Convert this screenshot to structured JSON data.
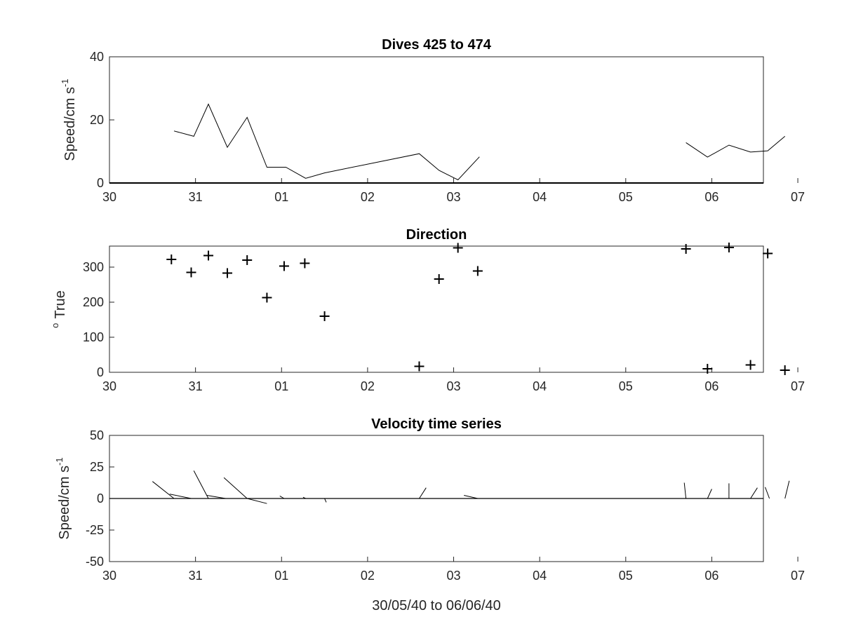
{
  "chart_data": [
    {
      "type": "line",
      "title": "Dives 425 to 474",
      "ylabel_main": "Speed/cm s",
      "ylabel_sup": "-1",
      "xticks": [
        "30",
        "31",
        "01",
        "02",
        "03",
        "04",
        "05",
        "06",
        "07"
      ],
      "yticks": [
        "0",
        "20",
        "40"
      ],
      "xlim_days": [
        0,
        7.6
      ],
      "ylim": [
        0,
        40
      ],
      "series": [
        {
          "x": [
            0.75,
            0.98,
            1.15,
            1.37,
            1.6,
            1.83,
            2.05,
            2.28,
            2.5,
            3.6,
            3.83,
            4.05,
            4.3
          ],
          "y": [
            16.5,
            14.8,
            25.0,
            11.3,
            20.8,
            5.0,
            5.0,
            1.5,
            3.2,
            9.3,
            4.0,
            1.0,
            8.3
          ]
        },
        {
          "x": [
            6.7,
            6.95,
            7.2,
            7.45,
            7.65,
            7.85
          ],
          "y": [
            12.8,
            8.2,
            12.0,
            9.8,
            10.2,
            14.8
          ]
        }
      ]
    },
    {
      "type": "scatter",
      "title": "Direction",
      "ylabel_sup": "o",
      "ylabel_main": "True",
      "xticks": [
        "30",
        "31",
        "01",
        "02",
        "03",
        "04",
        "05",
        "06",
        "07"
      ],
      "yticks": [
        "0",
        "100",
        "200",
        "300"
      ],
      "xlim_days": [
        0,
        7.6
      ],
      "ylim": [
        0,
        360
      ],
      "series": [
        {
          "x": [
            0.72,
            0.95,
            1.15,
            1.37,
            1.6,
            1.83,
            2.03,
            2.27,
            2.5,
            3.6,
            3.83,
            4.05,
            4.28,
            6.7,
            6.95,
            7.2,
            7.45,
            7.65,
            7.85
          ],
          "y": [
            322,
            285,
            333,
            283,
            320,
            213,
            303,
            311,
            160,
            17,
            266,
            355,
            289,
            352,
            10,
            356,
            21,
            339,
            6
          ]
        }
      ]
    },
    {
      "type": "line",
      "title": "Velocity time series",
      "ylabel_main": "Speed/cm s",
      "ylabel_sup": "-1",
      "xlabel": "30/05/40 to 06/06/40",
      "xticks": [
        "30",
        "31",
        "01",
        "02",
        "03",
        "04",
        "05",
        "06",
        "07"
      ],
      "yticks": [
        "-50",
        "-25",
        "0",
        "25",
        "50"
      ],
      "xlim_days": [
        0,
        7.6
      ],
      "ylim": [
        -50,
        50
      ],
      "zero_line": true,
      "series": [
        {
          "x": [
            0.5,
            0.75
          ],
          "y": [
            13.5,
            0
          ]
        },
        {
          "x": [
            0.7,
            0.95
          ],
          "y": [
            3.5,
            0
          ]
        },
        {
          "x": [
            0.98,
            1.15
          ],
          "y": [
            22,
            0
          ]
        },
        {
          "x": [
            1.13,
            1.35
          ],
          "y": [
            2.5,
            0
          ]
        },
        {
          "x": [
            1.33,
            1.6
          ],
          "y": [
            16.5,
            0
          ]
        },
        {
          "x": [
            1.6,
            1.83
          ],
          "y": [
            0,
            -4
          ]
        },
        {
          "x": [
            1.98,
            2.03
          ],
          "y": [
            2,
            0
          ]
        },
        {
          "x": [
            2.25,
            2.28
          ],
          "y": [
            1,
            0
          ]
        },
        {
          "x": [
            2.5,
            2.52
          ],
          "y": [
            0,
            -3
          ]
        },
        {
          "x": [
            3.6,
            3.68
          ],
          "y": [
            0,
            8.5
          ]
        },
        {
          "x": [
            4.12,
            4.28
          ],
          "y": [
            2.5,
            0
          ]
        },
        {
          "x": [
            6.68,
            6.7
          ],
          "y": [
            12.5,
            0
          ]
        },
        {
          "x": [
            6.95,
            7.0
          ],
          "y": [
            0,
            7.5
          ]
        },
        {
          "x": [
            7.2,
            7.2
          ],
          "y": [
            0,
            12
          ]
        },
        {
          "x": [
            7.45,
            7.53
          ],
          "y": [
            0,
            8.5
          ]
        },
        {
          "x": [
            7.62,
            7.67
          ],
          "y": [
            9,
            0
          ]
        },
        {
          "x": [
            7.85,
            7.9
          ],
          "y": [
            0,
            14
          ]
        }
      ]
    }
  ]
}
